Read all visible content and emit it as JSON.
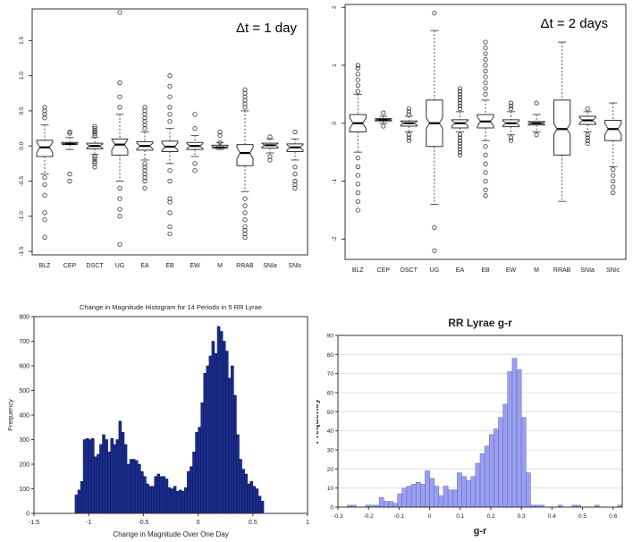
{
  "chart_data": [
    {
      "type": "box",
      "annotation": "Δt = 1 day",
      "categories": [
        "BLZ",
        "CEP",
        "DSCT",
        "UG",
        "EA",
        "EB",
        "EW",
        "M",
        "RRAB",
        "SNIa",
        "SNIc"
      ],
      "yticks": [
        -1.5,
        -1.0,
        -0.5,
        0.0,
        0.5,
        1.0,
        1.5
      ],
      "ytick_labels": [
        "-1.5",
        "-1.0",
        "-0.5",
        "0.0",
        "0.5",
        "1.0",
        "1.5"
      ],
      "ylim": [
        -1.55,
        1.95
      ],
      "boxes": [
        {
          "low": -0.4,
          "q1": -0.15,
          "med": -0.02,
          "q3": 0.08,
          "high": 0.3,
          "outliers": [
            0.5,
            0.55,
            0.45,
            0.4,
            -0.45,
            -0.55,
            -0.7,
            -0.95,
            -1.05,
            -1.3
          ]
        },
        {
          "low": -0.05,
          "q1": 0.02,
          "med": 0.03,
          "q3": 0.05,
          "high": 0.12,
          "outliers": [
            0.2,
            0.18,
            -0.4,
            -0.5
          ]
        },
        {
          "low": -0.12,
          "q1": -0.04,
          "med": 0.0,
          "q3": 0.04,
          "high": 0.12,
          "outliers": [
            0.15,
            0.18,
            0.2,
            0.22,
            0.25,
            0.28,
            -0.15,
            -0.18,
            -0.22,
            -0.25,
            -0.3
          ]
        },
        {
          "low": -0.5,
          "q1": -0.13,
          "med": 0.02,
          "q3": 0.1,
          "high": 0.45,
          "outliers": [
            0.55,
            0.7,
            0.9,
            1.9,
            -0.6,
            -0.75,
            -0.9,
            -1.0,
            -1.4
          ]
        },
        {
          "low": -0.2,
          "q1": -0.06,
          "med": 0.0,
          "q3": 0.06,
          "high": 0.2,
          "outliers": [
            0.25,
            0.3,
            0.35,
            0.4,
            0.45,
            0.5,
            0.55,
            -0.25,
            -0.3,
            -0.35,
            -0.4,
            -0.45,
            -0.5,
            -0.6
          ]
        },
        {
          "low": -0.25,
          "q1": -0.08,
          "med": -0.01,
          "q3": 0.07,
          "high": 0.25,
          "outliers": [
            0.35,
            0.45,
            0.55,
            0.7,
            0.85,
            1.0,
            -0.35,
            -0.5,
            -0.75,
            -0.8,
            -0.95,
            -1.15,
            -1.25
          ]
        },
        {
          "low": -0.15,
          "q1": -0.05,
          "med": 0.0,
          "q3": 0.05,
          "high": 0.15,
          "outliers": [
            0.25,
            0.45,
            -0.25,
            -0.35
          ]
        },
        {
          "low": -0.05,
          "q1": -0.03,
          "med": -0.02,
          "q3": 0.01,
          "high": 0.05,
          "outliers": [
            0.15,
            0.2,
            0.05
          ]
        },
        {
          "low": -0.65,
          "q1": -0.28,
          "med": -0.1,
          "q3": 0.02,
          "high": 0.5,
          "outliers": [
            0.55,
            0.6,
            0.65,
            0.7,
            0.75,
            0.8,
            -0.75,
            -0.85,
            -0.95,
            -1.05,
            -1.15,
            -1.2,
            -1.25,
            -1.3
          ]
        },
        {
          "low": -0.1,
          "q1": -0.03,
          "med": 0.01,
          "q3": 0.04,
          "high": 0.1,
          "outliers": [
            0.13,
            -0.15,
            -0.2
          ]
        },
        {
          "low": -0.2,
          "q1": -0.08,
          "med": -0.02,
          "q3": 0.03,
          "high": 0.1,
          "outliers": [
            0.2,
            -0.3,
            -0.4,
            -0.5,
            -0.55,
            -0.6
          ]
        }
      ]
    },
    {
      "type": "box",
      "annotation": "Δt = 2 days",
      "categories": [
        "BLZ",
        "CEP",
        "DSCT",
        "UG",
        "EA",
        "EB",
        "EW",
        "M",
        "RRAB",
        "SNIa",
        "SNIc"
      ],
      "yticks": [
        -2,
        -1,
        0,
        1,
        2
      ],
      "ytick_labels": [
        "-2",
        "-1",
        "0",
        "1",
        "2"
      ],
      "ylim": [
        -2.35,
        2.05
      ],
      "boxes": [
        {
          "low": -0.5,
          "q1": -0.15,
          "med": 0.0,
          "q3": 0.15,
          "high": 0.5,
          "outliers": [
            0.55,
            0.65,
            0.75,
            0.85,
            0.95,
            1.0,
            -0.6,
            -0.75,
            -0.9,
            -1.05,
            -1.2,
            -1.35,
            -1.5
          ]
        },
        {
          "low": 0.0,
          "q1": 0.04,
          "med": 0.06,
          "q3": 0.08,
          "high": 0.12,
          "outliers": [
            0.18,
            -0.05
          ]
        },
        {
          "low": -0.15,
          "q1": -0.05,
          "med": 0.0,
          "q3": 0.04,
          "high": 0.12,
          "outliers": [
            0.15,
            0.2,
            0.25,
            -0.2,
            -0.25,
            -0.3
          ]
        },
        {
          "low": -1.4,
          "q1": -0.4,
          "med": 0.0,
          "q3": 0.4,
          "high": 1.6,
          "outliers": [
            1.9,
            -1.8,
            -2.2
          ]
        },
        {
          "low": -0.15,
          "q1": -0.08,
          "med": 0.0,
          "q3": 0.06,
          "high": 0.2,
          "outliers": [
            0.25,
            0.3,
            0.35,
            0.4,
            0.45,
            0.5,
            0.55,
            0.6,
            -0.2,
            -0.25,
            -0.3,
            -0.35,
            -0.4,
            -0.45,
            -0.5,
            -0.55
          ]
        },
        {
          "low": -0.3,
          "q1": -0.08,
          "med": 0.03,
          "q3": 0.15,
          "high": 0.4,
          "outliers": [
            0.5,
            0.6,
            0.7,
            0.8,
            0.9,
            1.0,
            1.1,
            1.2,
            1.3,
            1.4,
            -0.4,
            -0.55,
            -0.7,
            -0.85,
            -1.0,
            -1.15,
            -1.25
          ]
        },
        {
          "low": -0.2,
          "q1": -0.06,
          "med": 0.0,
          "q3": 0.06,
          "high": 0.2,
          "outliers": [
            0.25,
            0.3,
            0.35,
            -0.25,
            -0.3
          ]
        },
        {
          "low": -0.15,
          "q1": -0.03,
          "med": 0.0,
          "q3": 0.03,
          "high": 0.15,
          "outliers": [
            0.35,
            -0.2
          ]
        },
        {
          "low": -1.35,
          "q1": -0.55,
          "med": -0.1,
          "q3": 0.4,
          "high": 1.4,
          "outliers": []
        },
        {
          "low": -0.15,
          "q1": -0.02,
          "med": 0.05,
          "q3": 0.12,
          "high": 0.2,
          "outliers": [
            0.25,
            -0.2,
            -0.25,
            -0.3,
            -0.35
          ]
        },
        {
          "low": -0.75,
          "q1": -0.3,
          "med": -0.1,
          "q3": 0.05,
          "high": 0.35,
          "outliers": [
            -0.8,
            -0.9,
            -1.0,
            -1.1,
            -1.2
          ]
        }
      ]
    },
    {
      "type": "bar",
      "title": "Change in Magnitude Histogram for 14 Periods in 5 RR Lyrae",
      "xlabel": "Change in Magnitude Over One Day",
      "ylabel": "Frequency",
      "xlim": [
        -1.5,
        1.0
      ],
      "ylim": [
        0,
        800
      ],
      "xticks": [
        -1.5,
        -1.0,
        -0.5,
        0.0,
        0.5,
        1.0
      ],
      "xtick_labels": [
        "-1.5",
        "-1",
        "-0.5",
        "0",
        "0.5",
        "1"
      ],
      "yticks": [
        0,
        100,
        200,
        300,
        400,
        500,
        600,
        700,
        800
      ],
      "ytick_labels": [
        "0",
        "100",
        "200",
        "300",
        "400",
        "500",
        "600",
        "700",
        "800"
      ],
      "bin_start": -1.125,
      "bin_width": 0.025,
      "values": [
        75,
        95,
        130,
        300,
        305,
        300,
        305,
        230,
        240,
        280,
        320,
        300,
        250,
        305,
        280,
        300,
        375,
        330,
        280,
        200,
        220,
        220,
        215,
        200,
        170,
        150,
        120,
        110,
        110,
        150,
        160,
        150,
        150,
        140,
        105,
        100,
        110,
        90,
        95,
        90,
        105,
        170,
        190,
        250,
        330,
        350,
        450,
        570,
        600,
        640,
        700,
        650,
        760,
        740,
        700,
        660,
        550,
        600,
        480,
        320,
        220,
        180,
        160,
        120,
        130,
        110,
        100,
        70,
        50
      ]
    },
    {
      "type": "bar",
      "title": "RR Lyrae g-r",
      "xlabel": "g-r",
      "ylabel": "Frequency",
      "xlim": [
        -0.3,
        0.63
      ],
      "ylim": [
        0,
        90
      ],
      "xticks": [
        -0.3,
        -0.2,
        -0.1,
        0.0,
        0.1,
        0.2,
        0.3,
        0.4,
        0.5,
        0.6
      ],
      "xtick_labels": [
        "-0.3",
        "-0.2",
        "-0.1",
        "0",
        "0.1",
        "0.2",
        "0.3",
        "0.4",
        "0.5",
        "0.6"
      ],
      "yticks": [
        0,
        10,
        20,
        30,
        40,
        50,
        60,
        70,
        80,
        90
      ],
      "ytick_labels": [
        "0",
        "10",
        "20",
        "30",
        "40",
        "50",
        "60",
        "70",
        "80",
        "90"
      ],
      "bin_start": -0.3,
      "bin_width": 0.015,
      "values": [
        0,
        0,
        1,
        1,
        0,
        0,
        1,
        1,
        1,
        5,
        3,
        3,
        2,
        7,
        10,
        11,
        12,
        13,
        12,
        19,
        15,
        11,
        6,
        11,
        9,
        9,
        18,
        16,
        14,
        16,
        23,
        28,
        32,
        38,
        41,
        47,
        54,
        71,
        78,
        72,
        47,
        18,
        1,
        1,
        1,
        0,
        0,
        0,
        1,
        0,
        0,
        1,
        1,
        0,
        0,
        0,
        1,
        0,
        0,
        0,
        0,
        1
      ]
    }
  ]
}
